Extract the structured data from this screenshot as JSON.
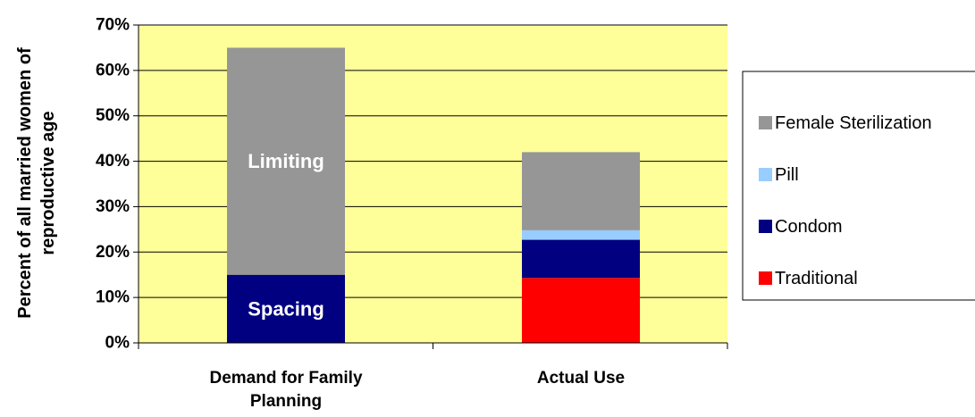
{
  "chart_data": {
    "type": "bar",
    "stacked": true,
    "ylabel_lines": [
      "Percent of all married women of",
      "reproductive age"
    ],
    "ylim": [
      0,
      70
    ],
    "yticks": [
      0,
      10,
      20,
      30,
      40,
      50,
      60,
      70
    ],
    "ytick_labels": [
      "0%",
      "10%",
      "20%",
      "30%",
      "40%",
      "50%",
      "60%",
      "70%"
    ],
    "grid": true,
    "plot_background": "#ffff99",
    "categories": [
      {
        "lines": [
          "Demand for Family",
          "Planning"
        ]
      },
      {
        "lines": [
          "Actual Use"
        ]
      }
    ],
    "bars": [
      {
        "category_index": 0,
        "segments": [
          {
            "label": "Spacing",
            "value": 15,
            "color": "#000080"
          },
          {
            "label": "Limiting",
            "value": 50,
            "color": "#969696"
          }
        ]
      },
      {
        "category_index": 1,
        "segments": [
          {
            "label": "Traditional",
            "value": 14.3,
            "color": "#ff0000"
          },
          {
            "label": "Condom",
            "value": 8.4,
            "color": "#000080"
          },
          {
            "label": "Pill",
            "value": 2.1,
            "color": "#99ccff"
          },
          {
            "label": "Female Sterilization",
            "value": 17.2,
            "color": "#969696"
          }
        ]
      }
    ],
    "legend": {
      "placement": "right",
      "entries": [
        {
          "label": "Female Sterilization",
          "color": "#969696"
        },
        {
          "label": "Pill",
          "color": "#99ccff"
        },
        {
          "label": "Condom",
          "color": "#000080"
        },
        {
          "label": "Traditional",
          "color": "#ff0000"
        }
      ]
    }
  }
}
